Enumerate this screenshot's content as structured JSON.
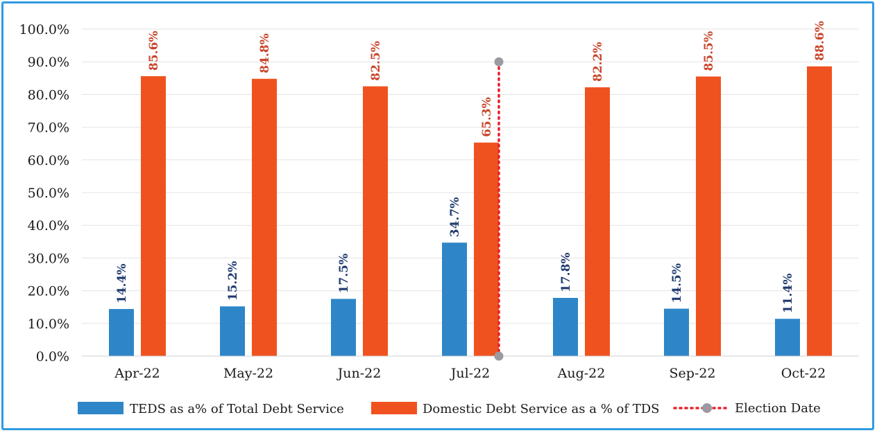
{
  "chart_data": {
    "type": "bar",
    "title": "",
    "xlabel": "",
    "ylabel": "",
    "ylim": [
      0,
      100
    ],
    "y_ticks": [
      "0.0%",
      "10.0%",
      "20.0%",
      "30.0%",
      "40.0%",
      "50.0%",
      "60.0%",
      "70.0%",
      "80.0%",
      "90.0%",
      "100.0%"
    ],
    "grid": true,
    "legend_position": "bottom",
    "categories": [
      "Apr-22",
      "May-22",
      "Jun-22",
      "Jul-22",
      "Aug-22",
      "Sep-22",
      "Oct-22"
    ],
    "series": [
      {
        "name": "TEDS as a% of Total Debt Service",
        "color": "#2e86c8",
        "label_color": "#1f3a6e",
        "values": [
          14.4,
          15.2,
          17.5,
          34.7,
          17.8,
          14.5,
          11.4
        ],
        "labels": [
          "14.4%",
          "15.2%",
          "17.5%",
          "34.7%",
          "17.8%",
          "14.5%",
          "11.4%"
        ]
      },
      {
        "name": "Domestic Debt Service as a % of TDS",
        "color": "#f0521f",
        "label_color": "#c8452a",
        "values": [
          85.6,
          84.8,
          82.5,
          65.3,
          82.2,
          85.5,
          88.6
        ],
        "labels": [
          "85.6%",
          "84.8%",
          "82.5%",
          "65.3%",
          "82.2%",
          "85.5%",
          "88.6%"
        ]
      }
    ],
    "annotation": {
      "name": "Election Date",
      "type": "vertical-dotted-line",
      "position": "between Jul-22 and Aug-22",
      "from": 0,
      "to": 90,
      "color": "#e8202a",
      "marker_color": "#9a9aa2"
    }
  }
}
